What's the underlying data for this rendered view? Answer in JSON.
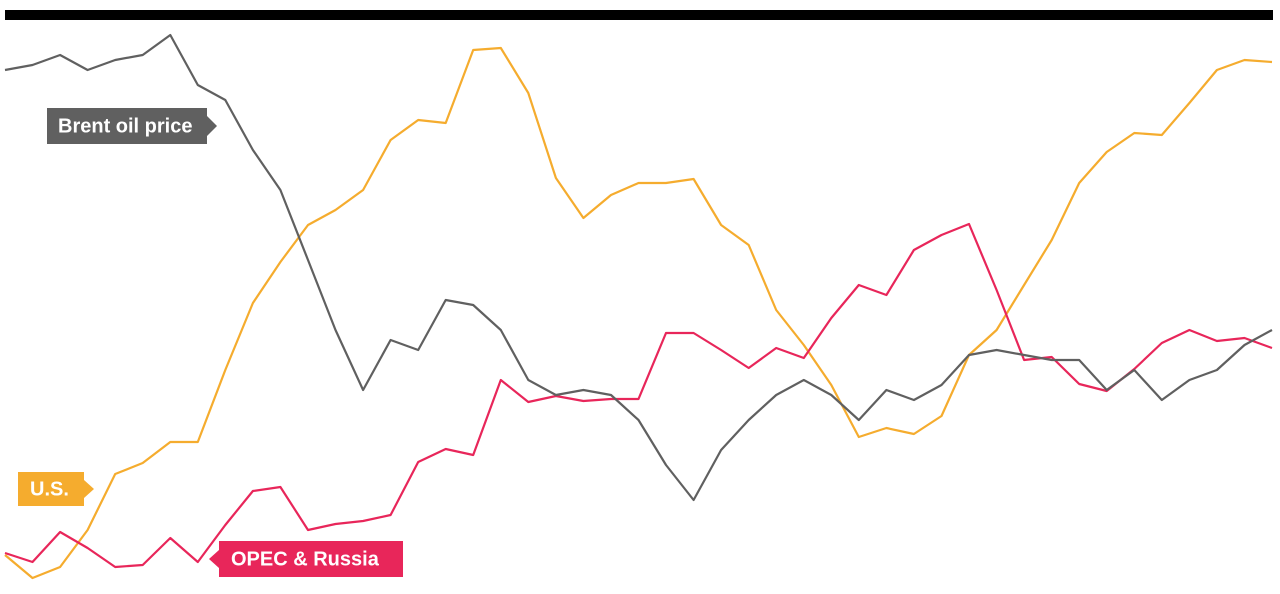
{
  "chart_data": {
    "type": "line",
    "x": [
      0,
      1,
      2,
      3,
      4,
      5,
      6,
      7,
      8,
      9,
      10,
      11,
      12,
      13,
      14,
      15,
      16,
      17,
      18,
      19,
      20,
      21,
      22,
      23,
      24,
      25,
      26,
      27,
      28,
      29,
      30,
      31,
      32,
      33,
      34,
      35,
      36,
      37,
      38,
      39,
      40,
      41,
      42,
      43,
      44,
      45,
      46
    ],
    "xlim": [
      0,
      46
    ],
    "ylim": [
      0,
      574
    ],
    "series": [
      {
        "name": "Brent oil price",
        "color": "#606060",
        "values": [
          524,
          529,
          539,
          524,
          534,
          539,
          559,
          509,
          494,
          444,
          404,
          334,
          264,
          204,
          254,
          244,
          294,
          289,
          264,
          214,
          199,
          204,
          199,
          174,
          129,
          94,
          144,
          174,
          199,
          214,
          199,
          174,
          204,
          194,
          209,
          239,
          244,
          239,
          234,
          234,
          204,
          224,
          194,
          214,
          224,
          249,
          264
        ]
      },
      {
        "name": "U.S.",
        "color": "#f5ac2e",
        "values": [
          39,
          16,
          27,
          64,
          120,
          131,
          152,
          152,
          224,
          291,
          332,
          369,
          384,
          404,
          454,
          474,
          471,
          544,
          546,
          501,
          416,
          376,
          399,
          411,
          411,
          415,
          369,
          349,
          284,
          249,
          209,
          157,
          166,
          160,
          178,
          239,
          264,
          309,
          354,
          411,
          442,
          461,
          459,
          491,
          524,
          534,
          532
        ]
      },
      {
        "name": "OPEC & Russia",
        "color": "#e8265a",
        "values": [
          41,
          32,
          62,
          46,
          27,
          29,
          56,
          32,
          69,
          103,
          107,
          64,
          70,
          73,
          79,
          132,
          145,
          139,
          214,
          192,
          198,
          193,
          195,
          195,
          261,
          261,
          244,
          226,
          246,
          236,
          276,
          309,
          299,
          344,
          359,
          370,
          304,
          234,
          237,
          210,
          203,
          225,
          251,
          264,
          253,
          256,
          246
        ]
      }
    ]
  }
}
